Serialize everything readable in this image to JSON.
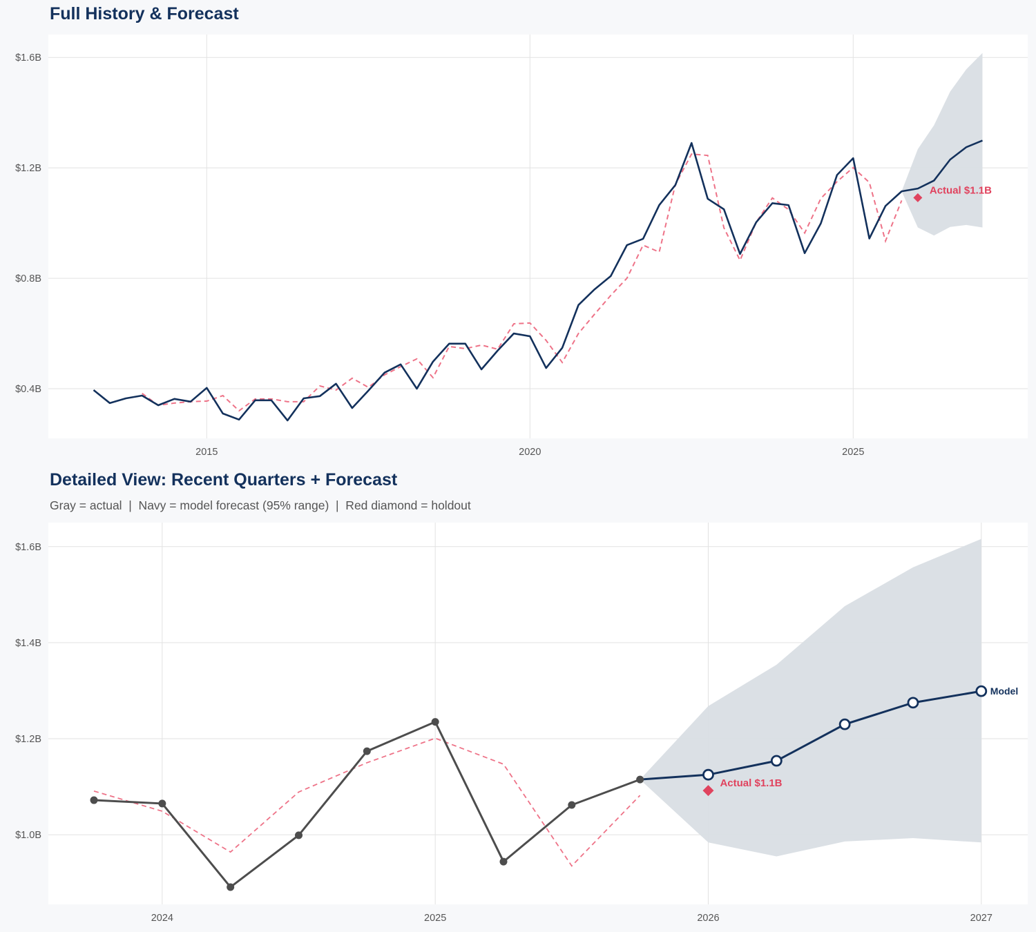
{
  "colors": {
    "navy": "#13315c",
    "actual_gray": "#4d4d4d",
    "fitted_red": "#ee7388",
    "holdout_red": "#e0435e",
    "band": "#d9dee4",
    "grid": "#e2e2e2",
    "background": "#f7f8fa"
  },
  "chart_data": [
    {
      "type": "line",
      "title": "Full History & Forecast",
      "xlim": [
        2012.55,
        2027.7
      ],
      "ylim": [
        0.22,
        1.683
      ],
      "grid": true,
      "x_ticks": [
        2015,
        2020,
        2025
      ],
      "x_tick_labels": [
        "2015",
        "2020",
        "2025"
      ],
      "y_ticks": [
        0.4,
        0.8,
        1.2,
        1.6
      ],
      "y_tick_labels": [
        "$0.4B",
        "$0.8B",
        "$1.2B",
        "$1.6B"
      ],
      "actual": {
        "start": 2013.25,
        "step": 0.25,
        "values": [
          0.395,
          0.348,
          0.365,
          0.375,
          0.34,
          0.363,
          0.353,
          0.403,
          0.31,
          0.288,
          0.358,
          0.358,
          0.285,
          0.365,
          0.373,
          0.418,
          0.33,
          0.393,
          0.458,
          0.488,
          0.4,
          0.498,
          0.563,
          0.563,
          0.47,
          0.538,
          0.6,
          0.59,
          0.475,
          0.548,
          0.703,
          0.76,
          0.808,
          0.92,
          0.943,
          1.065,
          1.138,
          1.29,
          1.088,
          1.05,
          0.888,
          1.003,
          1.072,
          1.065,
          0.891,
          0.999,
          1.174,
          1.235,
          0.944,
          1.062,
          1.115
        ]
      },
      "fitted": {
        "start": 2014.0,
        "step": 0.25,
        "values": [
          0.383,
          0.34,
          0.348,
          0.353,
          0.355,
          0.375,
          0.32,
          0.363,
          0.363,
          0.353,
          0.353,
          0.41,
          0.395,
          0.438,
          0.405,
          0.45,
          0.48,
          0.508,
          0.44,
          0.553,
          0.545,
          0.558,
          0.543,
          0.635,
          0.638,
          0.575,
          0.495,
          0.6,
          0.67,
          0.738,
          0.8,
          0.92,
          0.895,
          1.14,
          1.25,
          1.245,
          0.983,
          0.865,
          1.003,
          1.091,
          1.049,
          0.964,
          1.089,
          1.15,
          1.201,
          1.147,
          0.935,
          1.082
        ]
      },
      "forecast": {
        "x": [
          2025.75,
          2026.0,
          2026.25,
          2026.5,
          2026.75,
          2027.0
        ],
        "values": [
          1.115,
          1.125,
          1.154,
          1.23,
          1.275,
          1.299
        ],
        "lower": [
          1.115,
          0.984,
          0.955,
          0.986,
          0.993,
          0.984
        ],
        "upper": [
          1.115,
          1.268,
          1.354,
          1.476,
          1.557,
          1.616
        ]
      },
      "holdout": {
        "x": 2026.0,
        "value": 1.092,
        "label": "Actual $1.1B"
      }
    },
    {
      "type": "line",
      "title": "Detailed View: Recent Quarters + Forecast",
      "subtitle": "Gray = actual  |  Navy = model forecast (95% range)  |  Red diamond = holdout",
      "xlim": [
        2023.583,
        2027.17
      ],
      "ylim": [
        0.855,
        1.65
      ],
      "grid": true,
      "x_ticks": [
        2024,
        2025,
        2026,
        2027
      ],
      "x_tick_labels": [
        "2024",
        "2025",
        "2026",
        "2027"
      ],
      "y_ticks": [
        1.0,
        1.2,
        1.4,
        1.6
      ],
      "y_tick_labels": [
        "$1.0B",
        "$1.2B",
        "$1.4B",
        "$1.6B"
      ],
      "actual": {
        "start": 2023.75,
        "step": 0.25,
        "values": [
          1.072,
          1.065,
          0.891,
          0.999,
          1.174,
          1.235,
          0.944,
          1.062,
          1.115
        ]
      },
      "fitted": {
        "start": 2023.75,
        "step": 0.25,
        "values": [
          1.091,
          1.049,
          0.964,
          1.089,
          1.15,
          1.201,
          1.147,
          0.935,
          1.082
        ]
      },
      "forecast": {
        "x": [
          2025.75,
          2026.0,
          2026.25,
          2026.5,
          2026.75,
          2027.0
        ],
        "values": [
          1.115,
          1.125,
          1.154,
          1.23,
          1.275,
          1.299
        ],
        "lower": [
          1.115,
          0.984,
          0.955,
          0.986,
          0.993,
          0.984
        ],
        "upper": [
          1.115,
          1.268,
          1.354,
          1.476,
          1.557,
          1.616
        ],
        "end_label": "Model"
      },
      "holdout": {
        "x": 2026.0,
        "value": 1.092,
        "label": "Actual $1.1B"
      }
    }
  ]
}
